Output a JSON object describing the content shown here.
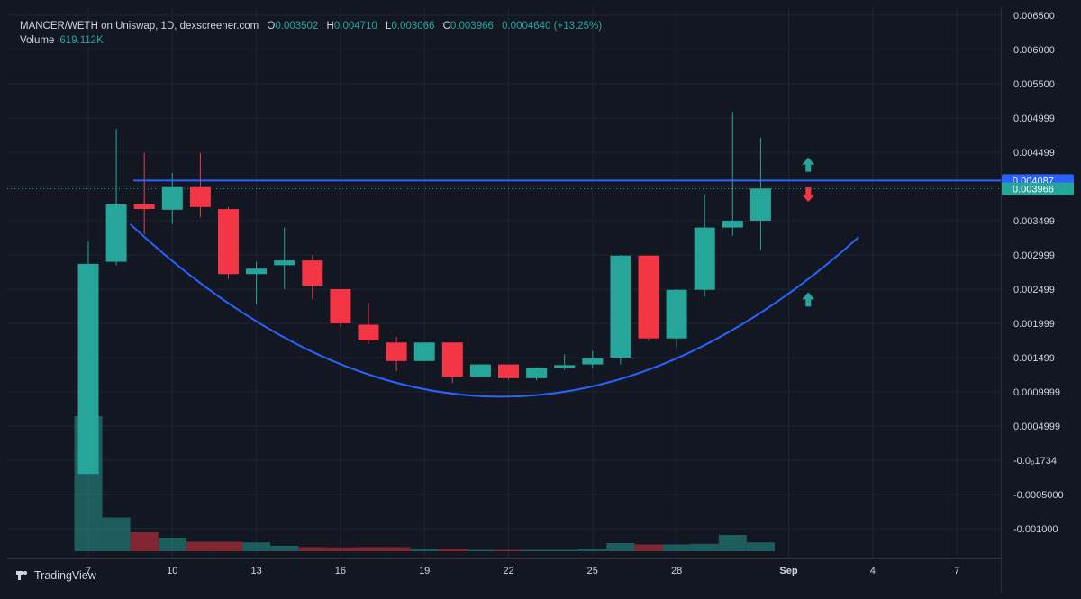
{
  "legend": {
    "symbol": "MANCER/WETH on Uniswap, 1D, dexscreener.com",
    "o_label": "O",
    "o_value": "0.003502",
    "h_label": "H",
    "h_value": "0.004710",
    "l_label": "L",
    "l_value": "0.003066",
    "c_label": "C",
    "c_value": "0.003966",
    "change": "0.0004640 (+13.25%)",
    "volume_label": "Volume",
    "volume_value": "619.112K"
  },
  "colors": {
    "background": "#131722",
    "up": "#26a69a",
    "down": "#f23645",
    "annotation_line": "#2962ff",
    "grid": "#1f2433"
  },
  "brand": {
    "name": "TradingView",
    "icon": "tradingview-logo-icon"
  },
  "chart_data": {
    "type": "candlestick",
    "interval": "1D",
    "x_tick_labels": [
      "7",
      "10",
      "13",
      "16",
      "19",
      "22",
      "25",
      "28",
      "Sep",
      "4",
      "7"
    ],
    "y_tick_labels": [
      "0.006500",
      "0.006000",
      "0.005500",
      "0.004999",
      "0.004499",
      "0.003999",
      "0.003499",
      "0.002999",
      "0.002499",
      "0.001999",
      "0.001499",
      "0.0009999",
      "0.0004999",
      "-0.0₀1734",
      "-0.0005000",
      "-0.001000"
    ],
    "y_tick_values": [
      0.0065,
      0.006,
      0.0055,
      0.004999,
      0.004499,
      0.003999,
      0.003499,
      0.002999,
      0.002499,
      0.001999,
      0.001499,
      0.0009999,
      0.0004999,
      -1.734e-07,
      -0.0005,
      -0.001
    ],
    "ylim": [
      -0.00122,
      0.0066
    ],
    "x_day_range": [
      6,
      40
    ],
    "candles": [
      {
        "day": 7,
        "open": -0.0002,
        "high": 0.0032,
        "low": -0.0002,
        "close": 0.00287
      },
      {
        "day": 8,
        "open": 0.0029,
        "high": 0.00484,
        "low": 0.00285,
        "close": 0.00374
      },
      {
        "day": 9,
        "open": 0.00374,
        "high": 0.00449,
        "low": 0.0033,
        "close": 0.00367
      },
      {
        "day": 10,
        "open": 0.00366,
        "high": 0.0042,
        "low": 0.00345,
        "close": 0.00399
      },
      {
        "day": 11,
        "open": 0.00399,
        "high": 0.00449,
        "low": 0.00355,
        "close": 0.0037
      },
      {
        "day": 12,
        "open": 0.00367,
        "high": 0.0037,
        "low": 0.00265,
        "close": 0.00272
      },
      {
        "day": 13,
        "open": 0.00272,
        "high": 0.0029,
        "low": 0.00228,
        "close": 0.0028
      },
      {
        "day": 14,
        "open": 0.00285,
        "high": 0.0034,
        "low": 0.0025,
        "close": 0.00292
      },
      {
        "day": 15,
        "open": 0.00292,
        "high": 0.003,
        "low": 0.00235,
        "close": 0.00255
      },
      {
        "day": 16,
        "open": 0.0025,
        "high": 0.0025,
        "low": 0.00195,
        "close": 0.002
      },
      {
        "day": 17,
        "open": 0.00198,
        "high": 0.0023,
        "low": 0.0017,
        "close": 0.00175
      },
      {
        "day": 18,
        "open": 0.00172,
        "high": 0.0018,
        "low": 0.0013,
        "close": 0.00145
      },
      {
        "day": 19,
        "open": 0.00145,
        "high": 0.0017,
        "low": 0.00145,
        "close": 0.00172
      },
      {
        "day": 20,
        "open": 0.00172,
        "high": 0.00172,
        "low": 0.00113,
        "close": 0.00122
      },
      {
        "day": 21,
        "open": 0.00122,
        "high": 0.0014,
        "low": 0.00122,
        "close": 0.0014
      },
      {
        "day": 22,
        "open": 0.0014,
        "high": 0.0014,
        "low": 0.00118,
        "close": 0.0012
      },
      {
        "day": 23,
        "open": 0.0012,
        "high": 0.00136,
        "low": 0.00117,
        "close": 0.00135
      },
      {
        "day": 24,
        "open": 0.00135,
        "high": 0.00155,
        "low": 0.00132,
        "close": 0.00139
      },
      {
        "day": 25,
        "open": 0.0014,
        "high": 0.0016,
        "low": 0.00135,
        "close": 0.00149
      },
      {
        "day": 26,
        "open": 0.0015,
        "high": 0.003,
        "low": 0.0014,
        "close": 0.00299
      },
      {
        "day": 27,
        "open": 0.00299,
        "high": 0.00299,
        "low": 0.00175,
        "close": 0.00178
      },
      {
        "day": 28,
        "open": 0.00178,
        "high": 0.0025,
        "low": 0.00165,
        "close": 0.00249
      },
      {
        "day": 29,
        "open": 0.00249,
        "high": 0.00389,
        "low": 0.00239,
        "close": 0.0034
      },
      {
        "day": 30,
        "open": 0.0034,
        "high": 0.00509,
        "low": 0.00328,
        "close": 0.0035
      },
      {
        "day": 31,
        "open": 0.0035,
        "high": 0.00471,
        "low": 0.00307,
        "close": 0.00397
      }
    ],
    "volume": [
      {
        "day": 7,
        "value": 100,
        "up": true
      },
      {
        "day": 8,
        "value": 25,
        "up": true
      },
      {
        "day": 9,
        "value": 14,
        "up": false
      },
      {
        "day": 10,
        "value": 10,
        "up": true
      },
      {
        "day": 11,
        "value": 7,
        "up": false
      },
      {
        "day": 12,
        "value": 7,
        "up": false
      },
      {
        "day": 13,
        "value": 6.5,
        "up": true
      },
      {
        "day": 14,
        "value": 4,
        "up": true
      },
      {
        "day": 15,
        "value": 3,
        "up": false
      },
      {
        "day": 16,
        "value": 2.8,
        "up": false
      },
      {
        "day": 17,
        "value": 3,
        "up": false
      },
      {
        "day": 18,
        "value": 3,
        "up": false
      },
      {
        "day": 19,
        "value": 2,
        "up": true
      },
      {
        "day": 20,
        "value": 2,
        "up": false
      },
      {
        "day": 21,
        "value": 1,
        "up": true
      },
      {
        "day": 22,
        "value": 1,
        "up": false
      },
      {
        "day": 23,
        "value": 1,
        "up": true
      },
      {
        "day": 24,
        "value": 1,
        "up": true
      },
      {
        "day": 25,
        "value": 2,
        "up": true
      },
      {
        "day": 26,
        "value": 6,
        "up": true
      },
      {
        "day": 27,
        "value": 5,
        "up": false
      },
      {
        "day": 28,
        "value": 5,
        "up": true
      },
      {
        "day": 29,
        "value": 5.5,
        "up": true
      },
      {
        "day": 30,
        "value": 12,
        "up": true
      },
      {
        "day": 31,
        "value": 6.5,
        "up": true
      }
    ],
    "resistance_line": {
      "value": 0.004087,
      "label": "0.004087",
      "from_day": 9
    },
    "current_price": {
      "value": 0.003966,
      "label": "0.003966"
    },
    "rounding_curve": [
      {
        "day": 8.5,
        "value": 0.00345
      },
      {
        "day": 21.5,
        "value": 0.00093
      },
      {
        "day": 34.5,
        "value": 0.00326
      }
    ],
    "annotation_arrows": [
      {
        "day": 32.7,
        "value": 0.00432,
        "direction": "up",
        "color": "#26a69a"
      },
      {
        "day": 32.7,
        "value": 0.00388,
        "direction": "down",
        "color": "#f23645"
      },
      {
        "day": 32.7,
        "value": 0.00235,
        "direction": "up",
        "color": "#26a69a"
      }
    ],
    "grid": true
  }
}
